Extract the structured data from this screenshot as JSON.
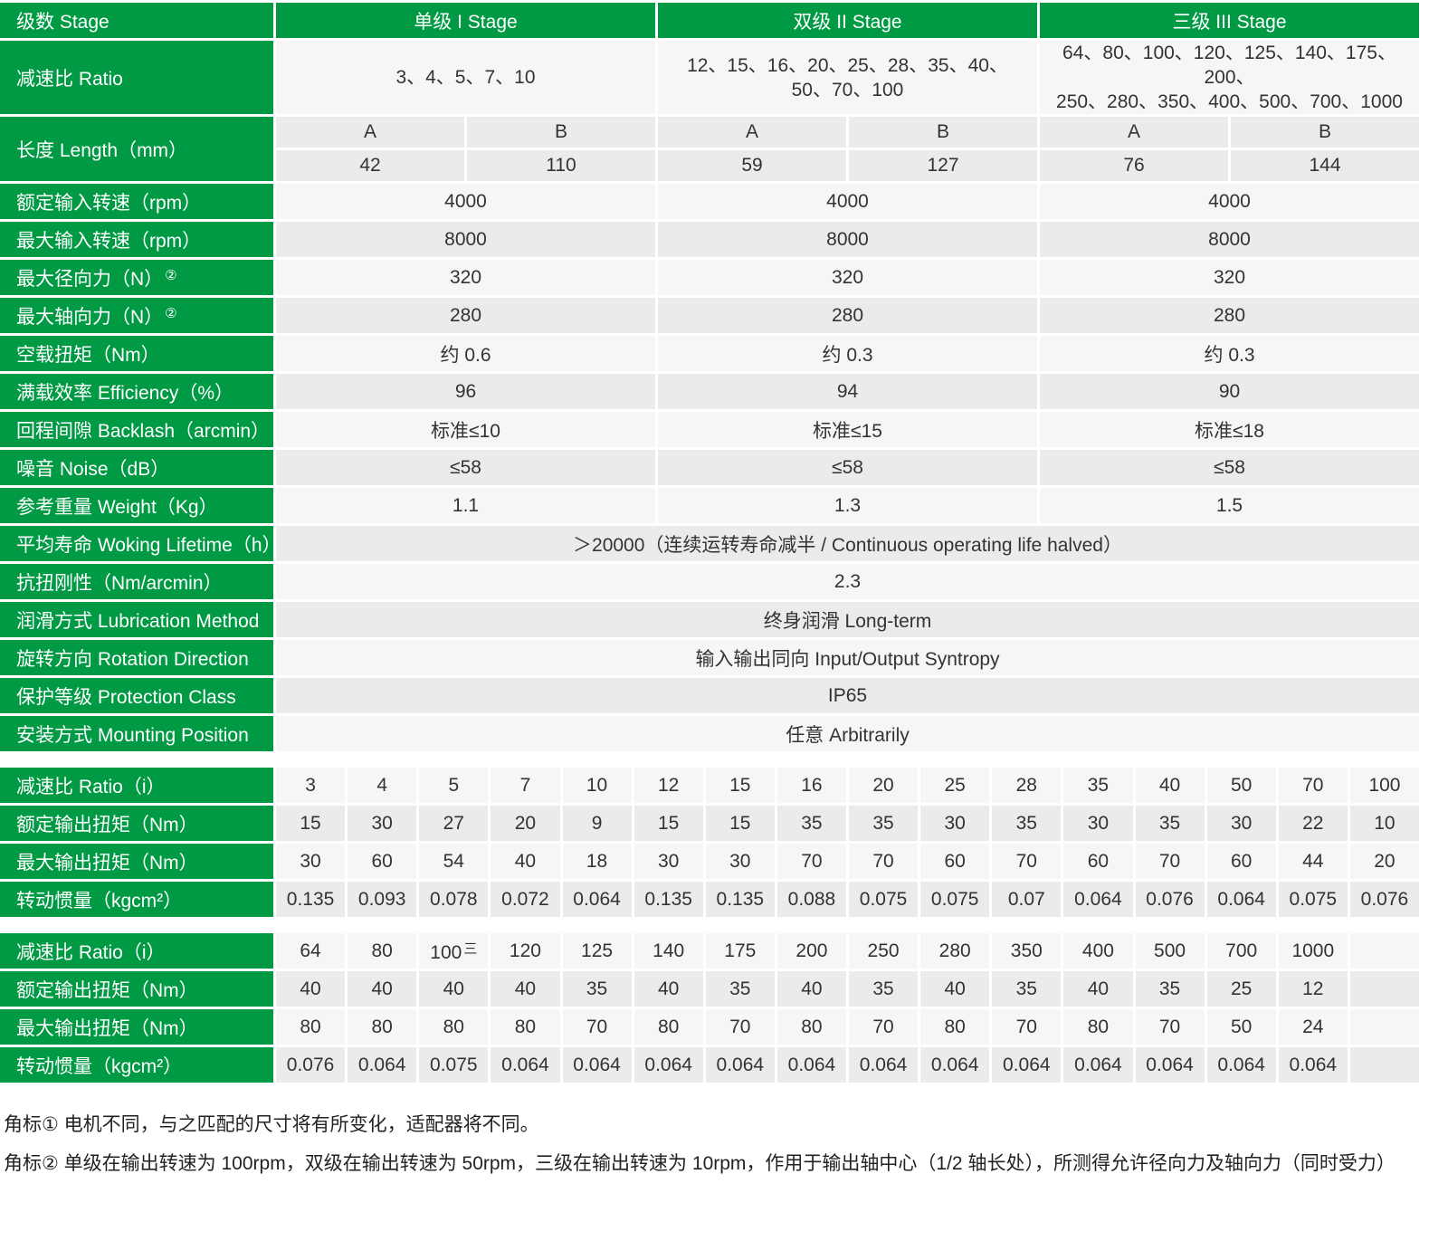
{
  "header": {
    "label": "级数 Stage",
    "stages": [
      "单级 I Stage",
      "双级 II Stage",
      "三级 III Stage"
    ]
  },
  "ratio": {
    "label": "减速比 Ratio",
    "values": [
      "3、4、5、7、10",
      "12、15、16、20、25、28、35、40、\n50、70、100",
      "64、80、100、120、125、140、175、200、\n250、280、350、400、500、700、1000"
    ]
  },
  "length": {
    "label": "长度 Length（mm）",
    "sub": [
      "A",
      "B",
      "A",
      "B",
      "A",
      "B"
    ],
    "values": [
      "42",
      "110",
      "59",
      "127",
      "76",
      "144"
    ]
  },
  "rows": [
    {
      "label": "额定输入转速（rpm）",
      "values": [
        "4000",
        "4000",
        "4000"
      ]
    },
    {
      "label": "最大输入转速（rpm）",
      "values": [
        "8000",
        "8000",
        "8000"
      ]
    },
    {
      "label": "最大径向力（N）",
      "note": "②",
      "values": [
        "320",
        "320",
        "320"
      ]
    },
    {
      "label": "最大轴向力（N）",
      "note": "②",
      "values": [
        "280",
        "280",
        "280"
      ]
    },
    {
      "label": "空载扭矩（Nm）",
      "values": [
        "约 0.6",
        "约 0.3",
        "约 0.3"
      ]
    },
    {
      "label": "满载效率 Efficiency（%）",
      "values": [
        "96",
        "94",
        "90"
      ]
    },
    {
      "label": "回程间隙 Backlash（arcmin）",
      "values": [
        "标准≤10",
        "标准≤15",
        "标准≤18"
      ]
    },
    {
      "label": "噪音 Noise（dB）",
      "values": [
        "≤58",
        "≤58",
        "≤58"
      ]
    },
    {
      "label": "参考重量 Weight（Kg）",
      "values": [
        "1.1",
        "1.3",
        "1.5"
      ]
    }
  ],
  "span_rows": [
    {
      "label": "平均寿命 Woking Lifetime（h）",
      "value": "＞20000（连续运转寿命减半 / Continuous operating life halved）"
    },
    {
      "label": "抗扭刚性（Nm/arcmin）",
      "value": "2.3"
    },
    {
      "label": "润滑方式 Lubrication Method",
      "value": "终身润滑 Long-term"
    },
    {
      "label": "旋转方向 Rotation Direction",
      "value": "输入输出同向 Input/Output Syntropy"
    },
    {
      "label": "保护等级 Protection Class",
      "value": "IP65"
    },
    {
      "label": "安装方式 Mounting Position",
      "value": "任意 Arbitrarily"
    }
  ],
  "torque_tables": [
    {
      "rows": [
        {
          "label": "减速比 Ratio（i）",
          "values": [
            "3",
            "4",
            "5",
            "7",
            "10",
            "12",
            "15",
            "16",
            "20",
            "25",
            "28",
            "35",
            "40",
            "50",
            "70",
            "100"
          ]
        },
        {
          "label": "额定输出扭矩（Nm）",
          "values": [
            "15",
            "30",
            "27",
            "20",
            "9",
            "15",
            "15",
            "35",
            "35",
            "30",
            "35",
            "30",
            "35",
            "30",
            "22",
            "10"
          ]
        },
        {
          "label": "最大输出扭矩（Nm）",
          "values": [
            "30",
            "60",
            "54",
            "40",
            "18",
            "30",
            "30",
            "70",
            "70",
            "60",
            "70",
            "60",
            "70",
            "60",
            "44",
            "20"
          ]
        },
        {
          "label": "转动惯量（kgcm²）",
          "values": [
            "0.135",
            "0.093",
            "0.078",
            "0.072",
            "0.064",
            "0.135",
            "0.135",
            "0.088",
            "0.075",
            "0.075",
            "0.07",
            "0.064",
            "0.076",
            "0.064",
            "0.075",
            "0.076"
          ]
        }
      ]
    },
    {
      "rows": [
        {
          "label": "减速比 Ratio（i）",
          "values": [
            "64",
            "80",
            "100",
            "120",
            "125",
            "140",
            "175",
            "200",
            "250",
            "280",
            "350",
            "400",
            "500",
            "700",
            "1000",
            ""
          ],
          "marks": {
            "2": "三"
          }
        },
        {
          "label": "额定输出扭矩（Nm）",
          "values": [
            "40",
            "40",
            "40",
            "40",
            "35",
            "40",
            "35",
            "40",
            "35",
            "40",
            "35",
            "40",
            "35",
            "25",
            "12",
            ""
          ]
        },
        {
          "label": "最大输出扭矩（Nm）",
          "values": [
            "80",
            "80",
            "80",
            "80",
            "70",
            "80",
            "70",
            "80",
            "70",
            "80",
            "70",
            "80",
            "70",
            "50",
            "24",
            ""
          ]
        },
        {
          "label": "转动惯量（kgcm²）",
          "values": [
            "0.076",
            "0.064",
            "0.075",
            "0.064",
            "0.064",
            "0.064",
            "0.064",
            "0.064",
            "0.064",
            "0.064",
            "0.064",
            "0.064",
            "0.064",
            "0.064",
            "0.064",
            ""
          ]
        }
      ]
    }
  ],
  "footnotes": [
    "角标① 电机不同，与之匹配的尺寸将有所变化，适配器将不同。",
    "角标② 单级在输出转速为 100rpm，双级在输出转速为 50rpm，三级在输出转速为 10rpm，作用于输出轴中心（1/2 轴长处），所测得允许径向力及轴向力（同时受力）"
  ],
  "colors": {
    "header_green": "#009a44",
    "cell_light": "#f6f6f6",
    "cell_dark": "#ebebeb"
  }
}
